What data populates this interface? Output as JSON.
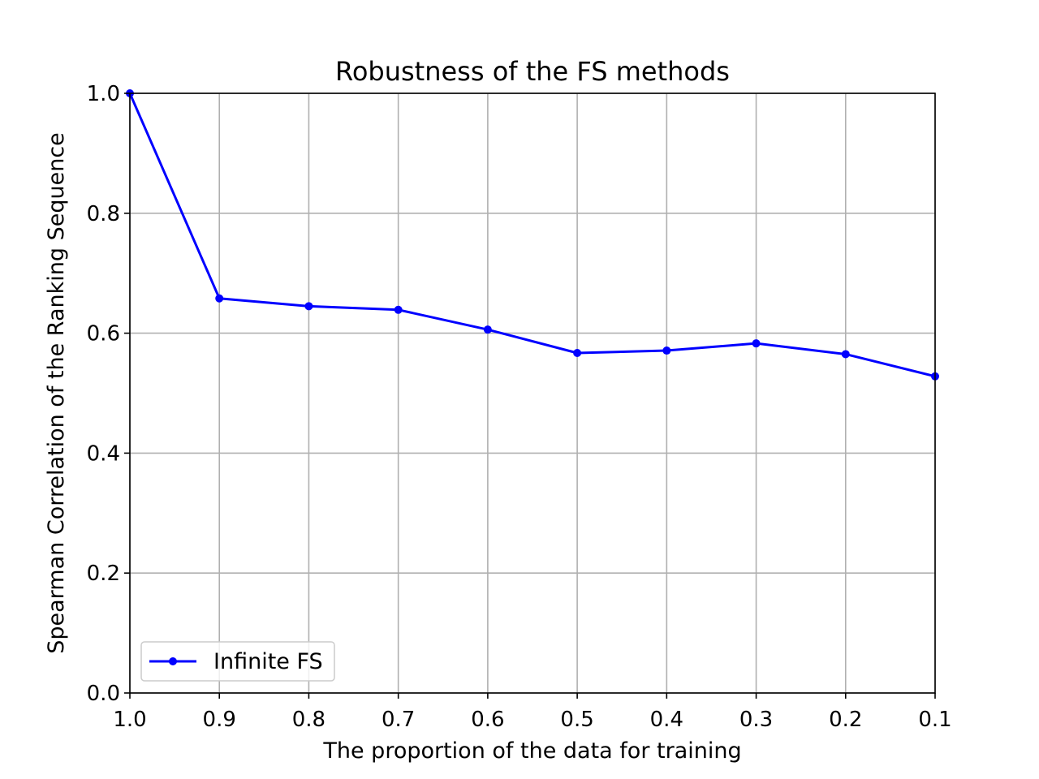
{
  "chart_data": {
    "type": "line",
    "title": "Robustness of the FS methods",
    "xlabel": "The proportion of the data for training",
    "ylabel": "Spearman Correlation of the Ranking Sequence",
    "x": [
      1.0,
      0.9,
      0.8,
      0.7,
      0.6,
      0.5,
      0.4,
      0.3,
      0.2,
      0.1
    ],
    "xlim": [
      1.0,
      0.1
    ],
    "ylim": [
      0.0,
      1.0
    ],
    "x_ticks": [
      "1.0",
      "0.9",
      "0.8",
      "0.7",
      "0.6",
      "0.5",
      "0.4",
      "0.3",
      "0.2",
      "0.1"
    ],
    "y_ticks": [
      "0.0",
      "0.2",
      "0.4",
      "0.6",
      "0.8",
      "1.0"
    ],
    "grid": true,
    "legend_position": "lower-left",
    "series": [
      {
        "name": "Infinite FS",
        "color": "#0000ff",
        "marker": "dot",
        "values": [
          1.0,
          0.658,
          0.645,
          0.639,
          0.606,
          0.567,
          0.571,
          0.583,
          0.565,
          0.528
        ]
      }
    ]
  }
}
